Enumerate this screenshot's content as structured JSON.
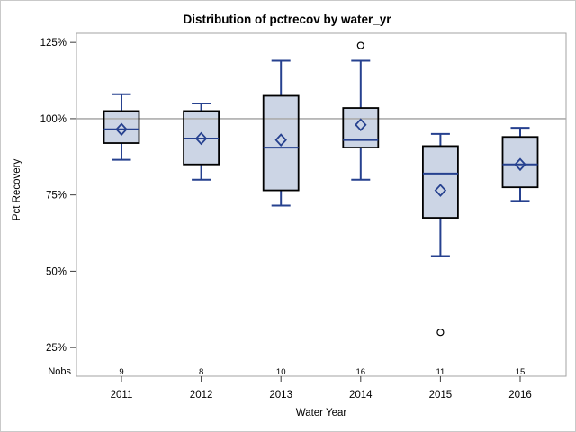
{
  "window": {
    "background": "#ffffff",
    "border_color": "#c9c9c9"
  },
  "chart_data": {
    "type": "box",
    "title": "Distribution of pctrecov by water_yr",
    "xlabel": "Water Year",
    "ylabel": "Pct Recovery",
    "nobs_label": "Nobs",
    "categories": [
      "2011",
      "2012",
      "2013",
      "2014",
      "2015",
      "2016"
    ],
    "nobs": [
      9,
      8,
      10,
      16,
      11,
      15
    ],
    "y_ticks": [
      {
        "value": 25,
        "label": "25%"
      },
      {
        "value": 50,
        "label": "50%"
      },
      {
        "value": 75,
        "label": "75%"
      },
      {
        "value": 100,
        "label": "100%"
      },
      {
        "value": 125,
        "label": "125%"
      }
    ],
    "ylim": [
      15.6,
      128
    ],
    "reference_line": 100,
    "grid": false,
    "legend": "none",
    "series": [
      {
        "category": "2011",
        "nobs": 9,
        "whisker_low": 86.5,
        "q1": 92,
        "median": 96.5,
        "q3": 102.5,
        "whisker_high": 108,
        "mean": 96.5,
        "outliers": []
      },
      {
        "category": "2012",
        "nobs": 8,
        "whisker_low": 80,
        "q1": 85,
        "median": 93.5,
        "q3": 102.5,
        "whisker_high": 105,
        "mean": 93.5,
        "outliers": []
      },
      {
        "category": "2013",
        "nobs": 10,
        "whisker_low": 71.5,
        "q1": 76.5,
        "median": 90.5,
        "q3": 107.5,
        "whisker_high": 119,
        "mean": 93,
        "outliers": []
      },
      {
        "category": "2014",
        "nobs": 16,
        "whisker_low": 80,
        "q1": 90.5,
        "median": 93,
        "q3": 103.5,
        "whisker_high": 119,
        "mean": 98,
        "outliers": [
          124
        ]
      },
      {
        "category": "2015",
        "nobs": 11,
        "whisker_low": 55,
        "q1": 67.5,
        "median": 82,
        "q3": 91,
        "whisker_high": 95,
        "mean": 76.5,
        "outliers": [
          30
        ]
      },
      {
        "category": "2016",
        "nobs": 15,
        "whisker_low": 73,
        "q1": 77.5,
        "median": 85,
        "q3": 94,
        "whisker_high": 97,
        "mean": 85,
        "outliers": []
      }
    ],
    "colors": {
      "box_fill": "#ccd5e5",
      "box_border": "#000000",
      "line": "#26418f",
      "reference_line": "#adadad",
      "axis": "#a3a3a3",
      "tick": "#3c3c3c",
      "text": "#000000",
      "outlier_stroke": "#000000",
      "outlier_fill": "#ffffff"
    }
  }
}
